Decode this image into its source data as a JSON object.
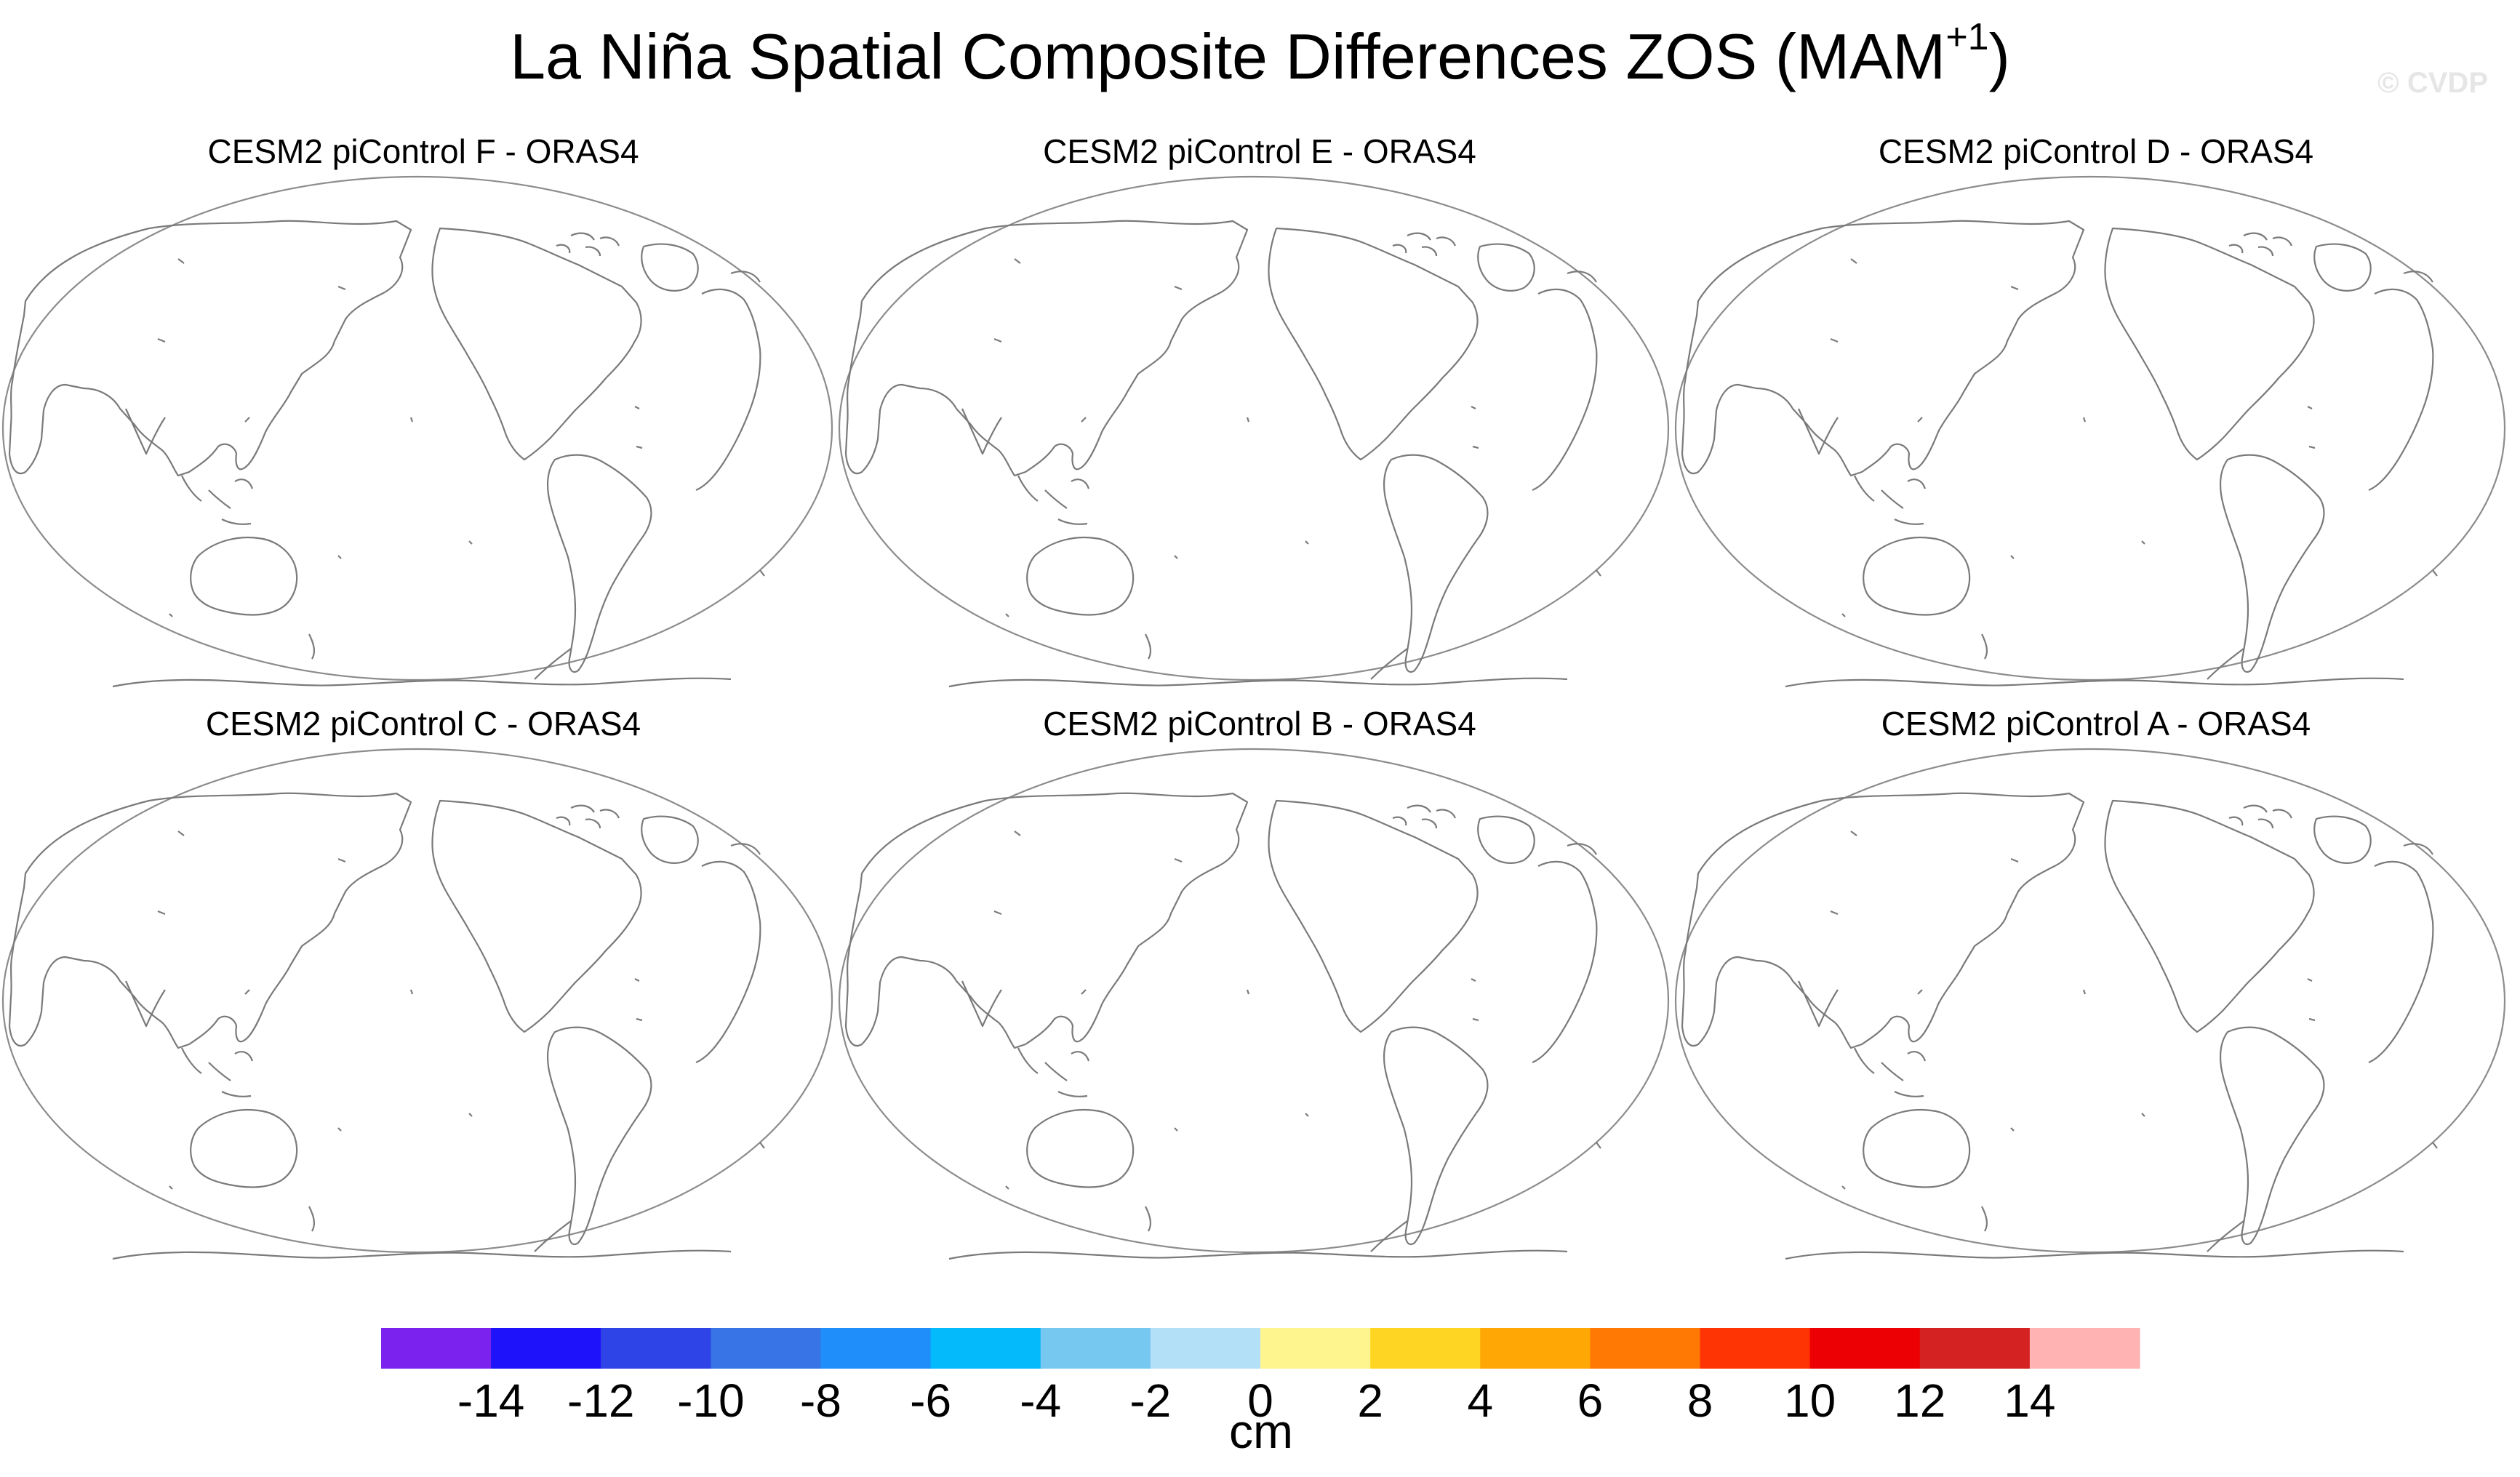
{
  "title": {
    "main": "La Niña Spatial Composite Differences ZOS (MAM",
    "superscript": "+1",
    "close": ")"
  },
  "watermark": "© CVDP",
  "panels": [
    {
      "title": "CESM2 piControl F - ORAS4"
    },
    {
      "title": "CESM2 piControl E - ORAS4"
    },
    {
      "title": "CESM2 piControl D - ORAS4"
    },
    {
      "title": "CESM2 piControl C - ORAS4"
    },
    {
      "title": "CESM2 piControl B - ORAS4"
    },
    {
      "title": "CESM2 piControl A - ORAS4"
    }
  ],
  "colors": {
    "coastline": "#7a7a7a",
    "boundary": "#8c8c8c"
  },
  "colorbar": {
    "units": "cm",
    "colors": [
      "#7b22ee",
      "#1e12fb",
      "#2e44e6",
      "#3874e6",
      "#1f8efb",
      "#04bafb",
      "#76c8f0",
      "#b3e0f6",
      "#fff58f",
      "#ffd524",
      "#ffa704",
      "#ff7904",
      "#ff3404",
      "#ed0004",
      "#d42121",
      "#ffb3b3"
    ],
    "labels": [
      "-14",
      "-12",
      "-10",
      "-8",
      "-6",
      "-4",
      "-2",
      "0",
      "2",
      "4",
      "6",
      "8",
      "10",
      "12",
      "14"
    ]
  }
}
